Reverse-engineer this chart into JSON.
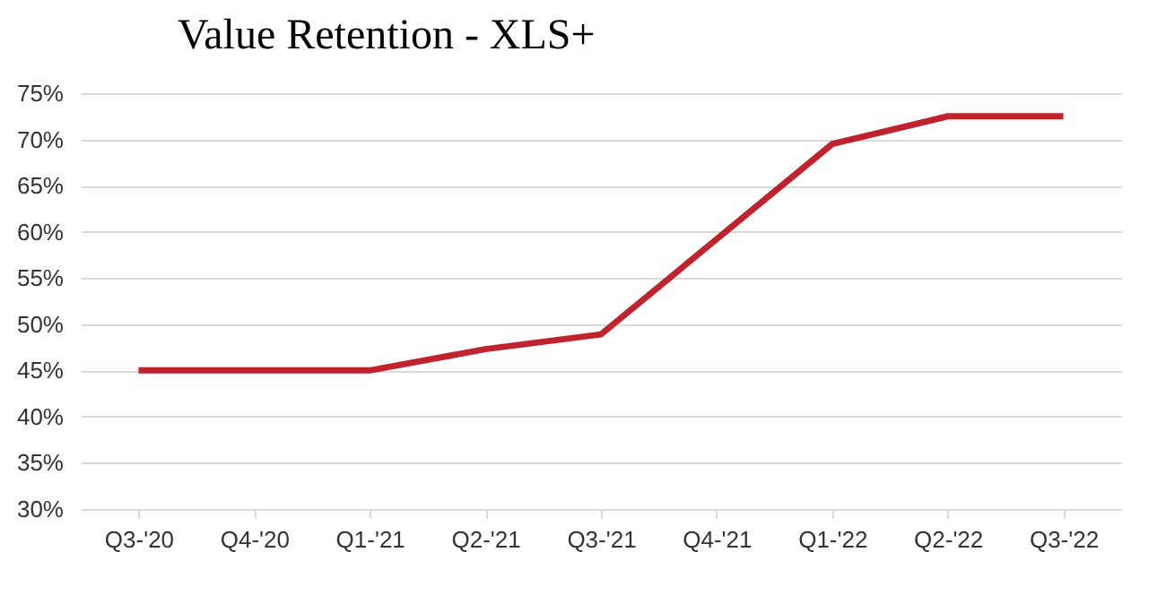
{
  "chart_data": {
    "type": "line",
    "title": "Value Retention - XLS+",
    "categories": [
      "Q3-'20",
      "Q4-'20",
      "Q1-'21",
      "Q2-'21",
      "Q3-'21",
      "Q4-'21",
      "Q1-'22",
      "Q2-'22",
      "Q3-'22"
    ],
    "series": [
      {
        "color": "#c0232e",
        "values": [
          45,
          45,
          45,
          47.3,
          48.9,
          59.2,
          69.5,
          72.5,
          72.5
        ]
      }
    ],
    "ylim": [
      30,
      75
    ],
    "yticks": [
      {
        "value": 30,
        "label": "30%"
      },
      {
        "value": 35,
        "label": "35%"
      },
      {
        "value": 40,
        "label": "40%"
      },
      {
        "value": 45,
        "label": "45%"
      },
      {
        "value": 50,
        "label": "50%"
      },
      {
        "value": 55,
        "label": "55%"
      },
      {
        "value": 60,
        "label": "60%"
      },
      {
        "value": 65,
        "label": "65%"
      },
      {
        "value": 70,
        "label": "70%"
      },
      {
        "value": 75,
        "label": "75%"
      }
    ],
    "grid": "y",
    "legend": false,
    "marker": "none",
    "line_style": "solid"
  }
}
